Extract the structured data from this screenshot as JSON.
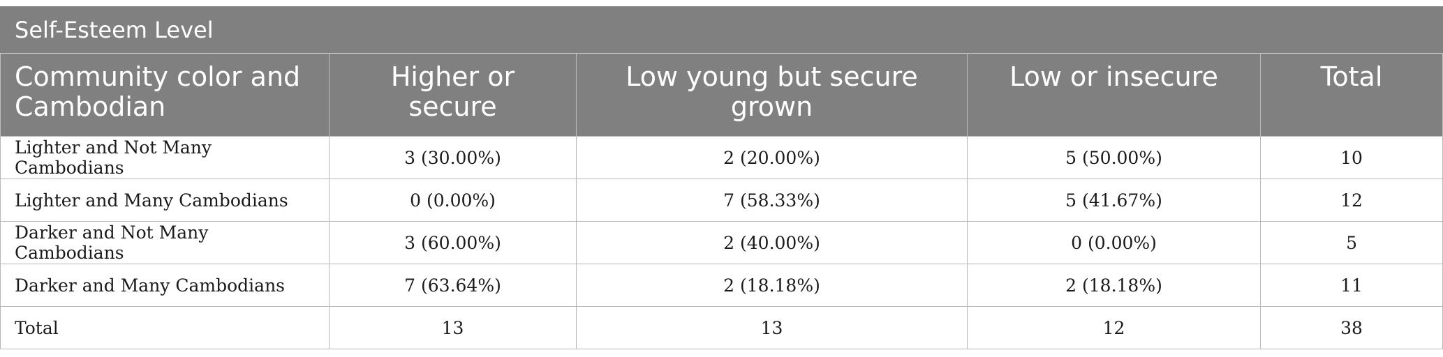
{
  "table": {
    "super_header": "Self-Esteem Level",
    "columns": [
      "Community color and Cambodian",
      "Higher or secure",
      "Low young but secure grown",
      "Low or insecure",
      "Total"
    ],
    "rows": [
      [
        "Lighter and Not Many Cambodians",
        "3 (30.00%)",
        "2 (20.00%)",
        "5 (50.00%)",
        "10"
      ],
      [
        "Lighter and Many Cambodians",
        "0 (0.00%)",
        "7 (58.33%)",
        "5 (41.67%)",
        "12"
      ],
      [
        "Darker and Not Many Cambodians",
        "3 (60.00%)",
        "2 (40.00%)",
        "0 (0.00%)",
        "5"
      ],
      [
        "Darker and Many Cambodians",
        "7 (63.64%)",
        "2 (18.18%)",
        "2 (18.18%)",
        "11"
      ],
      [
        "Total",
        "13",
        "13",
        "12",
        "38"
      ]
    ]
  }
}
